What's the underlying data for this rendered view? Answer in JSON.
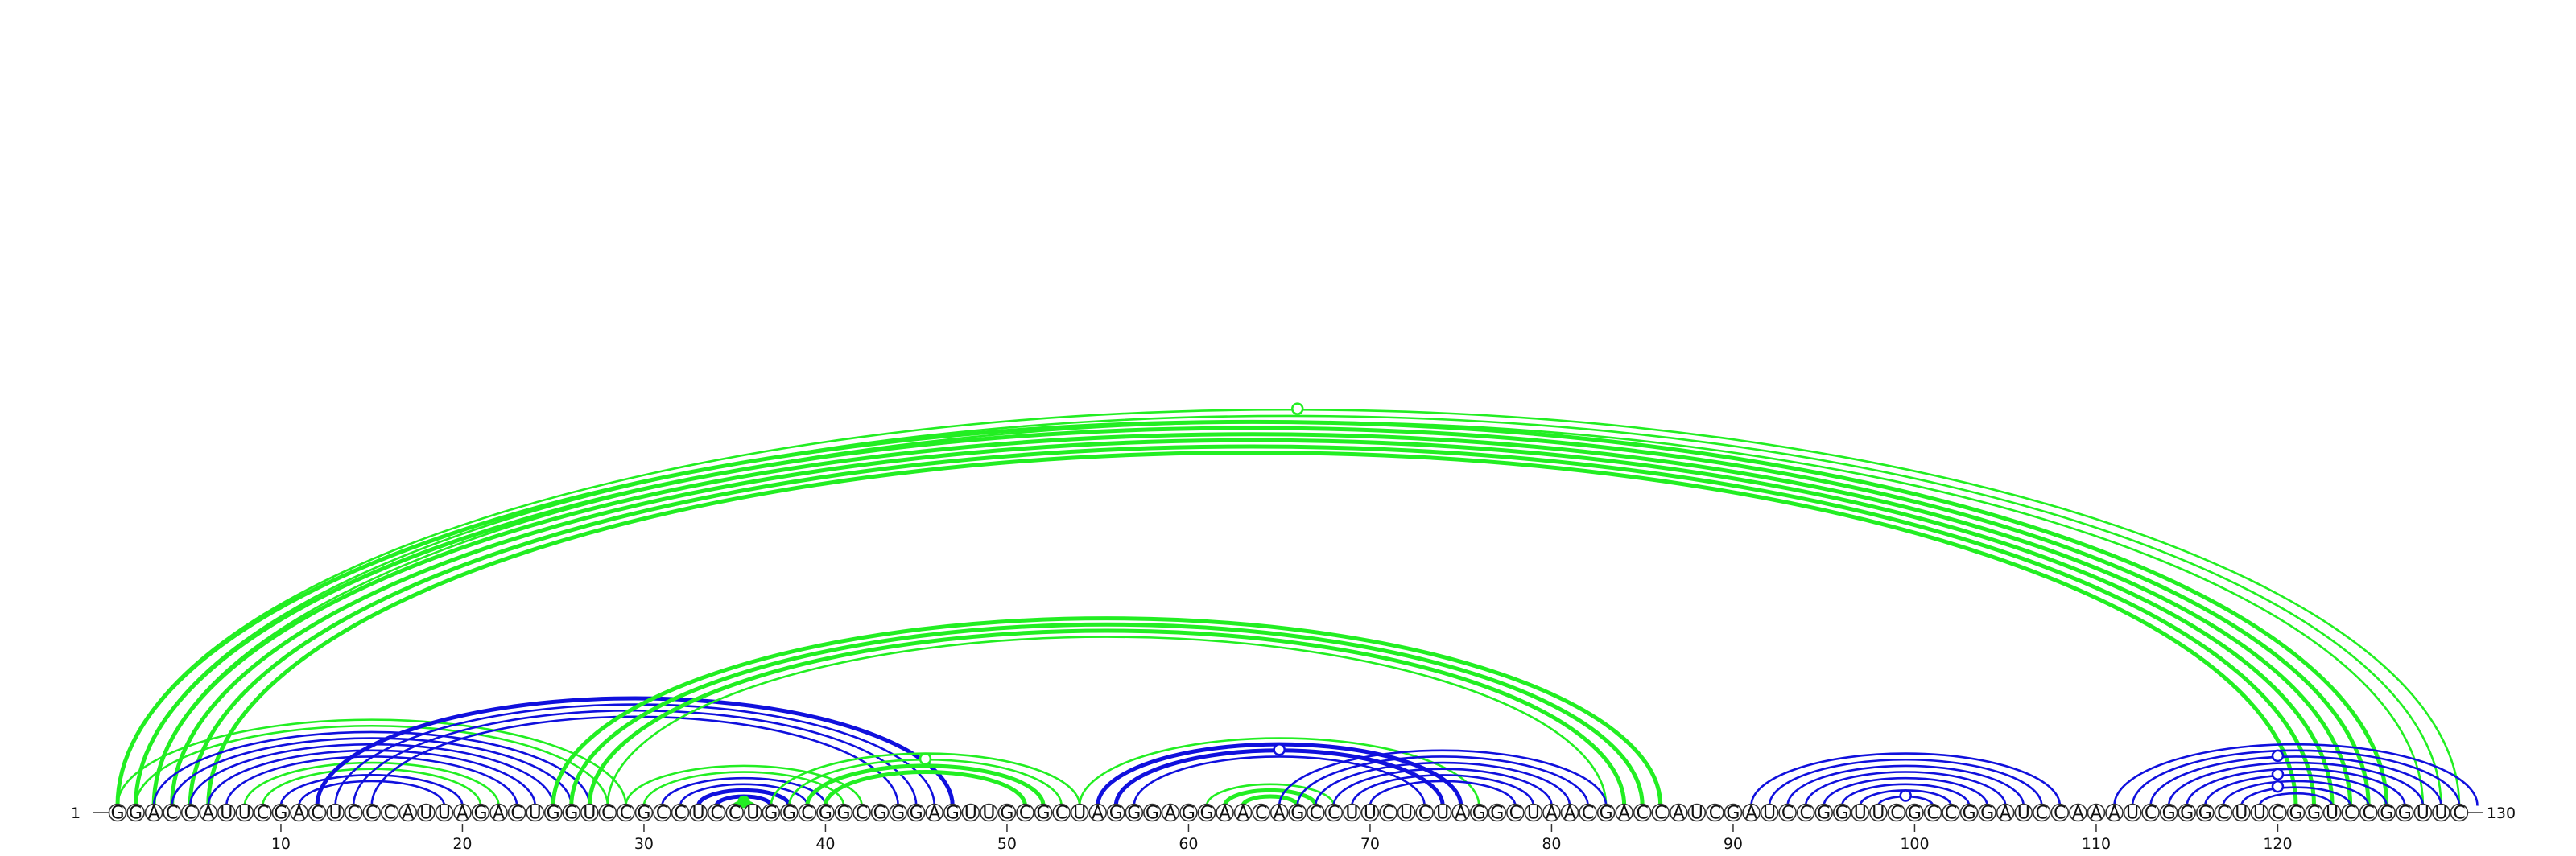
{
  "sequence": "GGACCAUUCGACUCCCAUUAGACUGGUCCGCCUCCUGGCGGCGGGAGUUGCGCUAGGGAGGAACAGCCUUCUCUAGGCUAACGACCAUCGAUCCGGUUCGCCGGAUCCAAAUCGGGCUUCGGUCCGGUUC",
  "start_label": "1",
  "end_label": "130",
  "ticks": [
    10,
    20,
    30,
    40,
    50,
    60,
    70,
    80,
    90,
    100,
    110,
    120
  ],
  "colors": {
    "green": "#22ee22",
    "blue": "#1010dd"
  },
  "pairs": [
    {
      "i": 1,
      "j": 130,
      "color": "green",
      "w": "thin"
    },
    {
      "i": 2,
      "j": 129,
      "color": "green",
      "w": "thin"
    },
    {
      "i": 3,
      "j": 128,
      "color": "green",
      "w": "thin"
    },
    {
      "i": 1,
      "j": 126,
      "color": "green",
      "w": "thick"
    },
    {
      "i": 2,
      "j": 125,
      "color": "green",
      "w": "thick"
    },
    {
      "i": 3,
      "j": 124,
      "color": "green",
      "w": "thick"
    },
    {
      "i": 4,
      "j": 123,
      "color": "green",
      "w": "thick"
    },
    {
      "i": 5,
      "j": 122,
      "color": "green",
      "w": "thick"
    },
    {
      "i": 6,
      "j": 121,
      "color": "green",
      "w": "thick"
    },
    {
      "i": 1,
      "j": 29,
      "color": "green",
      "w": "thin"
    },
    {
      "i": 2,
      "j": 28,
      "color": "green",
      "w": "thin"
    },
    {
      "i": 8,
      "j": 22,
      "color": "green",
      "w": "thin"
    },
    {
      "i": 9,
      "j": 21,
      "color": "green",
      "w": "thin"
    },
    {
      "i": 3,
      "j": 27,
      "color": "blue",
      "w": "thin"
    },
    {
      "i": 4,
      "j": 26,
      "color": "blue",
      "w": "thin"
    },
    {
      "i": 5,
      "j": 25,
      "color": "blue",
      "w": "thin"
    },
    {
      "i": 6,
      "j": 24,
      "color": "blue",
      "w": "thin"
    },
    {
      "i": 7,
      "j": 23,
      "color": "blue",
      "w": "thin"
    },
    {
      "i": 10,
      "j": 20,
      "color": "blue",
      "w": "thin"
    },
    {
      "i": 11,
      "j": 19,
      "color": "blue",
      "w": "thin"
    },
    {
      "i": 12,
      "j": 47,
      "color": "blue",
      "w": "thick"
    },
    {
      "i": 13,
      "j": 46,
      "color": "blue",
      "w": "thin"
    },
    {
      "i": 14,
      "j": 45,
      "color": "blue",
      "w": "thin"
    },
    {
      "i": 15,
      "j": 44,
      "color": "blue",
      "w": "thin"
    },
    {
      "i": 25,
      "j": 86,
      "color": "green",
      "w": "thick"
    },
    {
      "i": 26,
      "j": 85,
      "color": "green",
      "w": "thick"
    },
    {
      "i": 27,
      "j": 84,
      "color": "green",
      "w": "thick"
    },
    {
      "i": 28,
      "j": 83,
      "color": "green",
      "w": "thin"
    },
    {
      "i": 29,
      "j": 42,
      "color": "green",
      "w": "thin"
    },
    {
      "i": 30,
      "j": 41,
      "color": "green",
      "w": "thin"
    },
    {
      "i": 31,
      "j": 40,
      "color": "blue",
      "w": "thin"
    },
    {
      "i": 32,
      "j": 39,
      "color": "blue",
      "w": "thin"
    },
    {
      "i": 33,
      "j": 38,
      "color": "blue",
      "w": "thick"
    },
    {
      "i": 34,
      "j": 37,
      "color": "blue",
      "w": "thick"
    },
    {
      "i": 35,
      "j": 36,
      "color": "green",
      "w": "thick"
    },
    {
      "i": 37,
      "j": 54,
      "color": "green",
      "w": "thin"
    },
    {
      "i": 38,
      "j": 53,
      "color": "green",
      "w": "thin"
    },
    {
      "i": 39,
      "j": 52,
      "color": "green",
      "w": "thick"
    },
    {
      "i": 40,
      "j": 51,
      "color": "green",
      "w": "thick"
    },
    {
      "i": 54,
      "j": 76,
      "color": "green",
      "w": "thin"
    },
    {
      "i": 55,
      "j": 75,
      "color": "blue",
      "w": "thick"
    },
    {
      "i": 56,
      "j": 74,
      "color": "blue",
      "w": "thick"
    },
    {
      "i": 57,
      "j": 73,
      "color": "blue",
      "w": "thin"
    },
    {
      "i": 61,
      "j": 68,
      "color": "green",
      "w": "thin"
    },
    {
      "i": 62,
      "j": 67,
      "color": "green",
      "w": "thick"
    },
    {
      "i": 63,
      "j": 66,
      "color": "green",
      "w": "thick"
    },
    {
      "i": 65,
      "j": 83,
      "color": "blue",
      "w": "thin"
    },
    {
      "i": 66,
      "j": 82,
      "color": "blue",
      "w": "thin"
    },
    {
      "i": 67,
      "j": 81,
      "color": "blue",
      "w": "thin"
    },
    {
      "i": 68,
      "j": 80,
      "color": "blue",
      "w": "thin"
    },
    {
      "i": 69,
      "j": 79,
      "color": "blue",
      "w": "thin"
    },
    {
      "i": 70,
      "j": 78,
      "color": "blue",
      "w": "thin"
    },
    {
      "i": 91,
      "j": 108,
      "color": "blue",
      "w": "thin"
    },
    {
      "i": 92,
      "j": 107,
      "color": "blue",
      "w": "thin"
    },
    {
      "i": 93,
      "j": 106,
      "color": "blue",
      "w": "thin"
    },
    {
      "i": 94,
      "j": 105,
      "color": "blue",
      "w": "thin"
    },
    {
      "i": 95,
      "j": 104,
      "color": "blue",
      "w": "thin"
    },
    {
      "i": 96,
      "j": 103,
      "color": "blue",
      "w": "thin"
    },
    {
      "i": 97,
      "j": 102,
      "color": "blue",
      "w": "thin"
    },
    {
      "i": 98,
      "j": 101,
      "color": "blue",
      "w": "thin"
    },
    {
      "i": 111,
      "j": 131,
      "color": "blue",
      "w": "thin"
    },
    {
      "i": 112,
      "j": 130,
      "color": "blue",
      "w": "thin"
    },
    {
      "i": 113,
      "j": 129,
      "color": "blue",
      "w": "thin"
    },
    {
      "i": 114,
      "j": 128,
      "color": "blue",
      "w": "thin"
    },
    {
      "i": 115,
      "j": 127,
      "color": "blue",
      "w": "thin"
    },
    {
      "i": 116,
      "j": 126,
      "color": "blue",
      "w": "thin"
    },
    {
      "i": 117,
      "j": 125,
      "color": "blue",
      "w": "thin"
    },
    {
      "i": 118,
      "j": 124,
      "color": "blue",
      "w": "thin"
    },
    {
      "i": 119,
      "j": 123,
      "color": "blue",
      "w": "thin"
    }
  ],
  "markers": [
    {
      "pos": 66,
      "level_of": [
        1,
        130
      ],
      "color": "green",
      "filled": false
    },
    {
      "pos": 45.5,
      "level_of": [
        38,
        53
      ],
      "color": "green",
      "filled": false
    },
    {
      "pos": 35.5,
      "level_of": [
        35,
        36
      ],
      "color": "green",
      "filled": true
    },
    {
      "pos": 65,
      "level_of": [
        56,
        74
      ],
      "color": "blue",
      "filled": false
    },
    {
      "pos": 99.5,
      "level_of": [
        98,
        101
      ],
      "color": "blue",
      "filled": false
    },
    {
      "pos": 120,
      "level_of": [
        113,
        129
      ],
      "color": "blue",
      "filled": false
    },
    {
      "pos": 120,
      "level_of": [
        116,
        126
      ],
      "color": "blue",
      "filled": false
    },
    {
      "pos": 120,
      "level_of": [
        118,
        124
      ],
      "color": "blue",
      "filled": false
    }
  ]
}
